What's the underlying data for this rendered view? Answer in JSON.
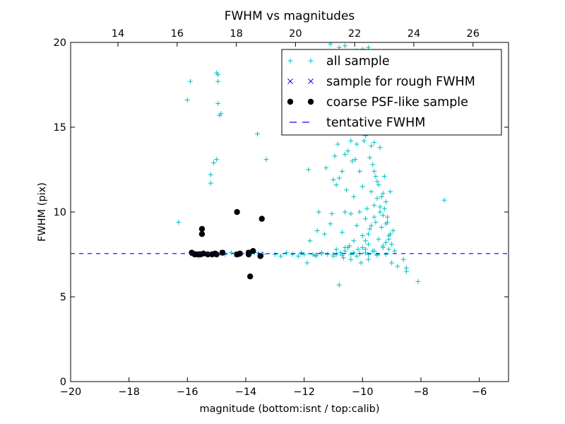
{
  "colors": {
    "all_sample": "#00bfbf",
    "rough_sample": "#0000ff",
    "coarse_sample": "#000000",
    "tentative_line": "#0000ff",
    "axes": "#000000",
    "background": "#ffffff"
  },
  "chart_data": {
    "type": "scatter",
    "title": "FWHM vs magnitudes",
    "xlabel": "magnitude (bottom:isnt / top:calib)",
    "ylabel": "FWHM (pix)",
    "xlim": [
      -20,
      -5
    ],
    "ylim": [
      0,
      20
    ],
    "top_xlim": [
      12.4,
      27.2
    ],
    "grid": false,
    "legend_position": "top-right",
    "x_ticks": [
      {
        "value": -20,
        "label": "−20"
      },
      {
        "value": -18,
        "label": "−18"
      },
      {
        "value": -16,
        "label": "−16"
      },
      {
        "value": -14,
        "label": "−14"
      },
      {
        "value": -12,
        "label": "−12"
      },
      {
        "value": -10,
        "label": "−10"
      },
      {
        "value": -8,
        "label": "−8"
      },
      {
        "value": -6,
        "label": "−6"
      }
    ],
    "top_x_ticks": [
      {
        "value": 14,
        "label": "14"
      },
      {
        "value": 16,
        "label": "16"
      },
      {
        "value": 18,
        "label": "18"
      },
      {
        "value": 20,
        "label": "20"
      },
      {
        "value": 22,
        "label": "22"
      },
      {
        "value": 24,
        "label": "24"
      },
      {
        "value": 26,
        "label": "26"
      }
    ],
    "y_ticks": [
      {
        "value": 0,
        "label": "0"
      },
      {
        "value": 5,
        "label": "5"
      },
      {
        "value": 10,
        "label": "10"
      },
      {
        "value": 15,
        "label": "15"
      },
      {
        "value": 20,
        "label": "20"
      }
    ],
    "series": [
      {
        "name": "all sample",
        "marker": "plus",
        "color": "#00bfbf",
        "points": [
          [
            -16.3,
            9.4
          ],
          [
            -16.0,
            16.6
          ],
          [
            -15.9,
            17.7
          ],
          [
            -15.6,
            7.4
          ],
          [
            -15.5,
            7.5
          ],
          [
            -15.2,
            11.7
          ],
          [
            -15.2,
            12.2
          ],
          [
            -15.1,
            12.9
          ],
          [
            -15.0,
            13.1
          ],
          [
            -15.0,
            18.2
          ],
          [
            -14.95,
            18.1
          ],
          [
            -14.95,
            17.7
          ],
          [
            -14.95,
            16.4
          ],
          [
            -14.9,
            15.7
          ],
          [
            -14.85,
            15.8
          ],
          [
            -15.3,
            7.5
          ],
          [
            -15.1,
            7.5
          ],
          [
            -14.7,
            7.5
          ],
          [
            -14.5,
            7.6
          ],
          [
            -14.2,
            7.5
          ],
          [
            -13.9,
            7.5
          ],
          [
            -13.7,
            7.6
          ],
          [
            -13.6,
            14.6
          ],
          [
            -13.4,
            7.5
          ],
          [
            -13.3,
            13.1
          ],
          [
            -13.0,
            7.5
          ],
          [
            -12.8,
            7.4
          ],
          [
            -12.7,
            16.9
          ],
          [
            -12.6,
            7.6
          ],
          [
            -12.4,
            7.5
          ],
          [
            -12.2,
            7.4
          ],
          [
            -12.1,
            7.6
          ],
          [
            -12.0,
            7.5
          ],
          [
            -11.9,
            7.0
          ],
          [
            -11.85,
            12.5
          ],
          [
            -11.8,
            8.3
          ],
          [
            -11.7,
            7.5
          ],
          [
            -11.6,
            7.4
          ],
          [
            -11.55,
            8.9
          ],
          [
            -11.5,
            10.0
          ],
          [
            -11.4,
            7.6
          ],
          [
            -11.3,
            8.7
          ],
          [
            -11.25,
            12.6
          ],
          [
            -11.2,
            7.5
          ],
          [
            -11.1,
            9.3
          ],
          [
            -11.05,
            9.9
          ],
          [
            -11.0,
            11.9
          ],
          [
            -11.0,
            7.4
          ],
          [
            -10.95,
            13.3
          ],
          [
            -10.9,
            11.6
          ],
          [
            -10.9,
            7.5
          ],
          [
            -10.85,
            14.0
          ],
          [
            -10.8,
            12.0
          ],
          [
            -10.8,
            5.7
          ],
          [
            -10.75,
            7.6
          ],
          [
            -10.7,
            12.4
          ],
          [
            -10.7,
            8.8
          ],
          [
            -10.65,
            7.3
          ],
          [
            -10.6,
            13.4
          ],
          [
            -10.6,
            10.0
          ],
          [
            -10.6,
            7.7
          ],
          [
            -10.55,
            11.3
          ],
          [
            -10.5,
            13.6
          ],
          [
            -10.5,
            7.9
          ],
          [
            -10.45,
            8.0
          ],
          [
            -10.4,
            9.9
          ],
          [
            -10.4,
            7.2
          ],
          [
            -10.35,
            13.0
          ],
          [
            -10.3,
            10.9
          ],
          [
            -10.3,
            8.3
          ],
          [
            -10.25,
            13.1
          ],
          [
            -10.2,
            7.4
          ],
          [
            -10.2,
            9.2
          ],
          [
            -10.15,
            7.8
          ],
          [
            -10.1,
            12.4
          ],
          [
            -10.1,
            10.0
          ],
          [
            -10.05,
            7.0
          ],
          [
            -10.0,
            11.5
          ],
          [
            -10.0,
            8.6
          ],
          [
            -9.95,
            14.2
          ],
          [
            -9.9,
            9.6
          ],
          [
            -9.9,
            7.6
          ],
          [
            -9.85,
            10.2
          ],
          [
            -9.8,
            8.1
          ],
          [
            -9.8,
            7.2
          ],
          [
            -9.75,
            9.0
          ],
          [
            -9.7,
            11.2
          ],
          [
            -9.7,
            13.9
          ],
          [
            -9.65,
            7.7
          ],
          [
            -9.6,
            10.4
          ],
          [
            -9.6,
            12.4
          ],
          [
            -9.55,
            9.4
          ],
          [
            -9.5,
            7.5
          ],
          [
            -9.5,
            11.8
          ],
          [
            -9.45,
            8.4
          ],
          [
            -9.4,
            10.0
          ],
          [
            -9.4,
            13.8
          ],
          [
            -9.35,
            9.1
          ],
          [
            -9.3,
            11.1
          ],
          [
            -9.3,
            7.9
          ],
          [
            -9.25,
            12.1
          ],
          [
            -9.2,
            8.2
          ],
          [
            -9.2,
            10.6
          ],
          [
            -9.15,
            9.7
          ],
          [
            -9.1,
            7.8
          ],
          [
            -9.1,
            8.6
          ],
          [
            -9.05,
            11.2
          ],
          [
            -9.0,
            8.1
          ],
          [
            -9.0,
            7.0
          ],
          [
            -8.95,
            8.9
          ],
          [
            -8.9,
            7.7
          ],
          [
            -8.8,
            6.8
          ],
          [
            -8.6,
            7.2
          ],
          [
            -8.5,
            6.7
          ],
          [
            -8.5,
            6.5
          ],
          [
            -8.1,
            5.9
          ],
          [
            -7.2,
            10.7
          ],
          [
            -11.6,
            7.45
          ],
          [
            -11.4,
            7.55
          ],
          [
            -11.0,
            7.5
          ],
          [
            -10.7,
            7.45
          ],
          [
            -10.4,
            7.5
          ],
          [
            -10.1,
            7.55
          ],
          [
            -9.8,
            7.5
          ],
          [
            -9.5,
            7.45
          ],
          [
            -9.2,
            7.5
          ],
          [
            -10.9,
            7.8
          ],
          [
            -10.6,
            7.9
          ],
          [
            -10.3,
            7.6
          ],
          [
            -9.9,
            7.8
          ],
          [
            -9.6,
            7.7
          ],
          [
            -9.3,
            8.0
          ],
          [
            -10.6,
            19.8
          ],
          [
            -10.2,
            19.5
          ],
          [
            -10.0,
            19.6
          ],
          [
            -9.8,
            19.7
          ],
          [
            -11.1,
            19.9
          ],
          [
            -10.8,
            19.7
          ],
          [
            -10.2,
            14.0
          ],
          [
            -9.9,
            14.5
          ],
          [
            -9.6,
            14.1
          ],
          [
            -10.4,
            14.2
          ],
          [
            -9.75,
            13.2
          ],
          [
            -9.65,
            12.8
          ],
          [
            -9.55,
            12.1
          ],
          [
            -9.45,
            11.6
          ],
          [
            -9.35,
            10.9
          ],
          [
            -9.25,
            10.2
          ],
          [
            -9.15,
            9.4
          ],
          [
            -9.05,
            8.7
          ],
          [
            -9.5,
            10.8
          ],
          [
            -9.4,
            10.3
          ],
          [
            -9.3,
            9.8
          ],
          [
            -9.2,
            9.3
          ],
          [
            -9.1,
            8.4
          ],
          [
            -9.6,
            9.7
          ],
          [
            -9.7,
            9.2
          ],
          [
            -9.8,
            8.7
          ],
          [
            -9.9,
            8.3
          ],
          [
            -10.0,
            7.9
          ]
        ]
      },
      {
        "name": "sample for rough FWHM",
        "marker": "x",
        "color": "#0000ff",
        "points": [
          [
            -15.8,
            7.55
          ],
          [
            -15.5,
            7.55
          ],
          [
            -15.1,
            7.55
          ],
          [
            -14.8,
            7.6
          ],
          [
            -14.3,
            7.5
          ],
          [
            -13.9,
            7.6
          ],
          [
            -13.5,
            7.5
          ]
        ]
      },
      {
        "name": "coarse PSF-like sample",
        "marker": "dot",
        "color": "#000000",
        "points": [
          [
            -15.85,
            7.6
          ],
          [
            -15.75,
            7.5
          ],
          [
            -15.65,
            7.5
          ],
          [
            -15.55,
            7.5
          ],
          [
            -15.45,
            7.55
          ],
          [
            -15.3,
            7.5
          ],
          [
            -15.15,
            7.5
          ],
          [
            -15.05,
            7.55
          ],
          [
            -15.0,
            7.5
          ],
          [
            -15.5,
            8.7
          ],
          [
            -15.5,
            9.0
          ],
          [
            -14.8,
            7.6
          ],
          [
            -14.3,
            7.5
          ],
          [
            -14.2,
            7.55
          ],
          [
            -14.3,
            10.0
          ],
          [
            -13.9,
            7.5
          ],
          [
            -13.9,
            7.6
          ],
          [
            -13.75,
            7.7
          ],
          [
            -13.5,
            7.4
          ],
          [
            -13.45,
            9.6
          ],
          [
            -13.85,
            6.2
          ]
        ]
      }
    ],
    "reference_line": {
      "name": "tentative FWHM",
      "y": 7.55,
      "style": "dashed",
      "color": "#0000ff"
    }
  }
}
